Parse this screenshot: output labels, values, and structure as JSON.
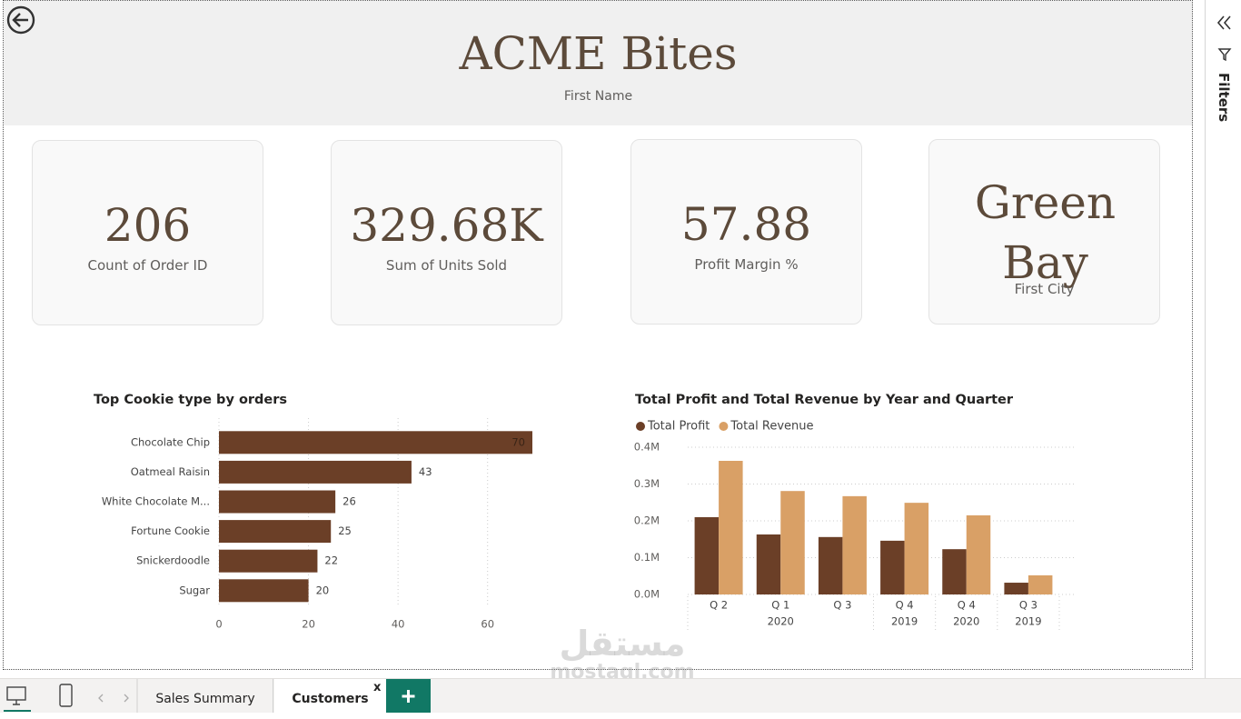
{
  "header": {
    "title": "ACME Bites",
    "subtitle": "First Name"
  },
  "cards": [
    {
      "value": 206,
      "label": "Count of Order ID"
    },
    {
      "value": "329.68K",
      "label": "Sum of Units Sold"
    },
    {
      "value": 57.88,
      "label": "Profit Margin %"
    },
    {
      "value": "Green Bay",
      "label": "First City"
    }
  ],
  "chart_data": [
    {
      "type": "bar",
      "orientation": "horizontal",
      "title": "Top Cookie type by orders",
      "categories": [
        "Chocolate Chip",
        "Oatmeal Raisin",
        "White Chocolate M...",
        "Fortune Cookie",
        "Snickerdoodle",
        "Sugar"
      ],
      "values": [
        70,
        43,
        26,
        25,
        22,
        20
      ],
      "color": "#6b3f27",
      "xlim": [
        0,
        70
      ],
      "xticks": [
        0,
        20,
        40,
        60
      ],
      "grid": true
    },
    {
      "type": "grouped_bar",
      "title": "Total Profit and Total Revenue by Year and Quarter",
      "categories": [
        "Q 2",
        "Q 1",
        "Q 3",
        "Q 4",
        "Q 4",
        "Q 3"
      ],
      "category_groups": [
        "2020",
        "2020",
        "2020",
        "2019",
        "2020",
        "2019"
      ],
      "series": [
        {
          "name": "Total Profit",
          "color": "#6b3f27",
          "values": [
            210000,
            163000,
            156000,
            146000,
            123000,
            32000
          ]
        },
        {
          "name": "Total Revenue",
          "color": "#d9a066",
          "values": [
            363000,
            281000,
            267000,
            249000,
            215000,
            52000
          ]
        }
      ],
      "ylim": [
        0,
        400000
      ],
      "yticks": [
        {
          "value": 0,
          "label": "0.0M"
        },
        {
          "value": 100000,
          "label": "0.1M"
        },
        {
          "value": 200000,
          "label": "0.2M"
        },
        {
          "value": 300000,
          "label": "0.3M"
        },
        {
          "value": 400000,
          "label": "0.4M"
        }
      ],
      "grid": true,
      "legend": "top-left"
    }
  ],
  "filters_pane": {
    "label": "Filters"
  },
  "tabs": [
    {
      "label": "Sales Summary"
    },
    {
      "label": "Customers",
      "active": true
    }
  ],
  "tab_close": "x",
  "watermark": [
    "مستقل",
    "mostaql.com"
  ]
}
